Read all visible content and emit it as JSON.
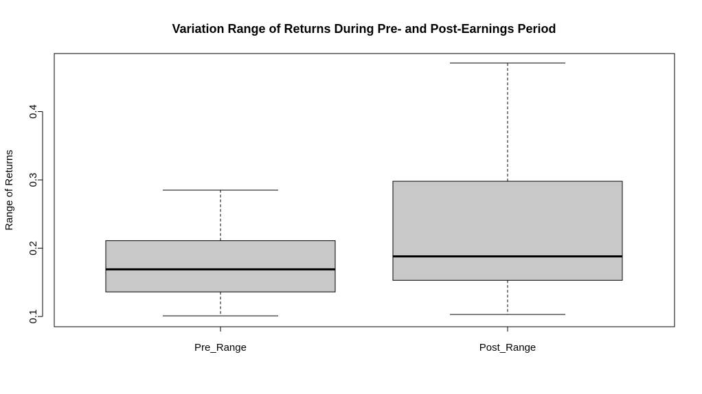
{
  "chart_data": {
    "type": "boxplot",
    "title": "Variation Range of Returns During Pre- and Post-Earnings Period",
    "xlabel": "",
    "ylabel": "Range of Returns",
    "ylim": [
      0.085,
      0.485
    ],
    "yticks": [
      0.1,
      0.2,
      0.3,
      0.4
    ],
    "ytick_labels": [
      "0.1",
      "0.2",
      "0.3",
      "0.4"
    ],
    "categories": [
      "Pre_Range",
      "Post_Range"
    ],
    "boxes": [
      {
        "category": "Pre_Range",
        "whisker_low": 0.101,
        "q1": 0.136,
        "median": 0.169,
        "q3": 0.211,
        "whisker_high": 0.285
      },
      {
        "category": "Post_Range",
        "whisker_low": 0.103,
        "q1": 0.153,
        "median": 0.188,
        "q3": 0.298,
        "whisker_high": 0.471
      }
    ],
    "box_color": "#c8c8c8",
    "grid": false,
    "legend": "none"
  }
}
